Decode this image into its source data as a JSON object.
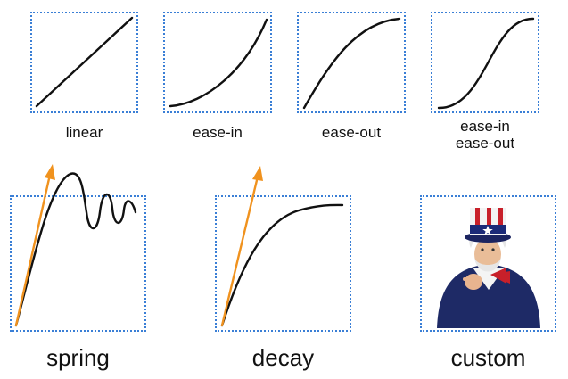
{
  "panels": [
    {
      "id": "linear",
      "label": "linear"
    },
    {
      "id": "ease-in",
      "label": "ease-in"
    },
    {
      "id": "ease-out",
      "label": "ease-out"
    },
    {
      "id": "ease-in-out",
      "label_line1": "ease-in",
      "label_line2": "ease-out"
    },
    {
      "id": "spring",
      "label": "spring"
    },
    {
      "id": "decay",
      "label": "decay"
    },
    {
      "id": "custom",
      "label": "custom"
    }
  ],
  "colors": {
    "border": "#3a7fd6",
    "curve": "#111111",
    "velocity_arrow": "#f0921e"
  },
  "icons": {
    "custom": "uncle-sam-illustration"
  }
}
